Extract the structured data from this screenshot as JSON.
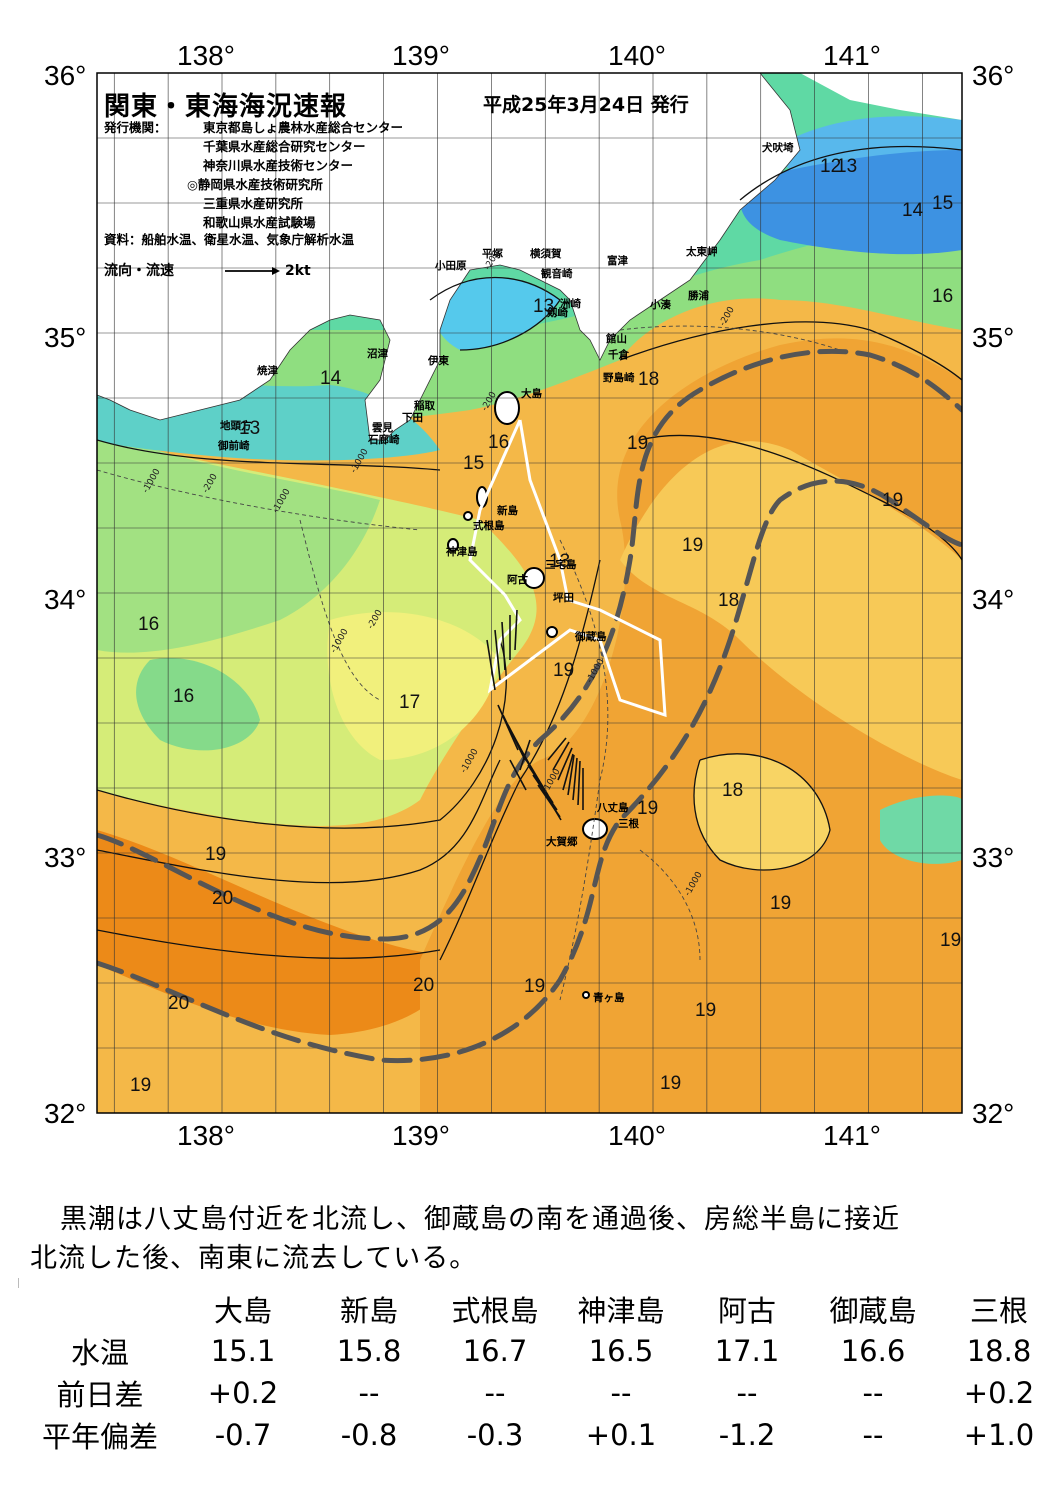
{
  "header": {
    "title": "関東・東海海況速報",
    "date": "平成25年3月24日 発行",
    "issuer_label": "発行機関：",
    "issuers": [
      "東京都島しょ農林水産総合センター",
      "千葉県水産総合研究センター",
      "神奈川県水産技術センター",
      "◎静岡県水産技術研究所",
      "三重県水産研究所",
      "和歌山県水産試験場"
    ],
    "source": "資料：船舶水温、衛星水温、気象庁解析水温",
    "legend_label": "流向・流速",
    "legend_speed": "2kt"
  },
  "axes": {
    "lon_labels": [
      "138°",
      "139°",
      "140°",
      "141°"
    ],
    "lat_labels": [
      "36°",
      "35°",
      "34°",
      "33°",
      "32°"
    ]
  },
  "place_names": [
    {
      "name": "犬吠埼"
    },
    {
      "name": "太東岬"
    },
    {
      "name": "勝浦"
    },
    {
      "name": "小湊"
    },
    {
      "name": "富津"
    },
    {
      "name": "横須賀"
    },
    {
      "name": "平塚"
    },
    {
      "name": "小田原"
    },
    {
      "name": "観音崎"
    },
    {
      "name": "剱崎"
    },
    {
      "name": "洲崎"
    },
    {
      "name": "館山"
    },
    {
      "name": "千倉"
    },
    {
      "name": "野島崎"
    },
    {
      "name": "沼津"
    },
    {
      "name": "伊東"
    },
    {
      "name": "焼津"
    },
    {
      "name": "稲取"
    },
    {
      "name": "下田"
    },
    {
      "name": "雲見"
    },
    {
      "name": "石廊崎"
    },
    {
      "name": "地頭方"
    },
    {
      "name": "御前崎"
    },
    {
      "name": "大島"
    },
    {
      "name": "新島"
    },
    {
      "name": "式根島"
    },
    {
      "name": "神津島"
    },
    {
      "name": "三宅島"
    },
    {
      "name": "阿古"
    },
    {
      "name": "坪田"
    },
    {
      "name": "御蔵島"
    },
    {
      "name": "八丈島"
    },
    {
      "name": "三根"
    },
    {
      "name": "大賀郷"
    },
    {
      "name": "青ヶ島"
    }
  ],
  "isotherm_labels": [
    "12",
    "13",
    "14",
    "15",
    "16",
    "17",
    "18",
    "19",
    "20"
  ],
  "depth_labels": [
    "-200",
    "-1000"
  ],
  "colors": {
    "sst_12": "#3a8fe0",
    "sst_13": "#5ec8f0",
    "sst_14": "#44d6c8",
    "sst_15": "#55d890",
    "sst_16": "#9ae27e",
    "sst_17": "#d8ec7a",
    "sst_18": "#f7d860",
    "sst_19": "#f1a032",
    "sst_20": "#ec8a18",
    "kuroshio_axis": "#555555",
    "land": "#ffffff"
  },
  "summary": {
    "line1": "黒潮は八丈島付近を北流し、御蔵島の南を通過後、房総半島に接近",
    "line2": "北流した後、南東に流去している。"
  },
  "table": {
    "columns": [
      "大島",
      "新島",
      "式根島",
      "神津島",
      "阿古",
      "御蔵島",
      "三根"
    ],
    "rows": [
      {
        "label": "水温",
        "values": [
          "15.1",
          "15.8",
          "16.7",
          "16.5",
          "17.1",
          "16.6",
          "18.8"
        ]
      },
      {
        "label": "前日差",
        "values": [
          "+0.2",
          "--",
          "--",
          "--",
          "--",
          "--",
          "+0.2"
        ]
      },
      {
        "label": "平年偏差",
        "values": [
          "-0.7",
          "-0.8",
          "-0.3",
          "+0.1",
          "-1.2",
          "--",
          "+1.0"
        ]
      }
    ]
  }
}
